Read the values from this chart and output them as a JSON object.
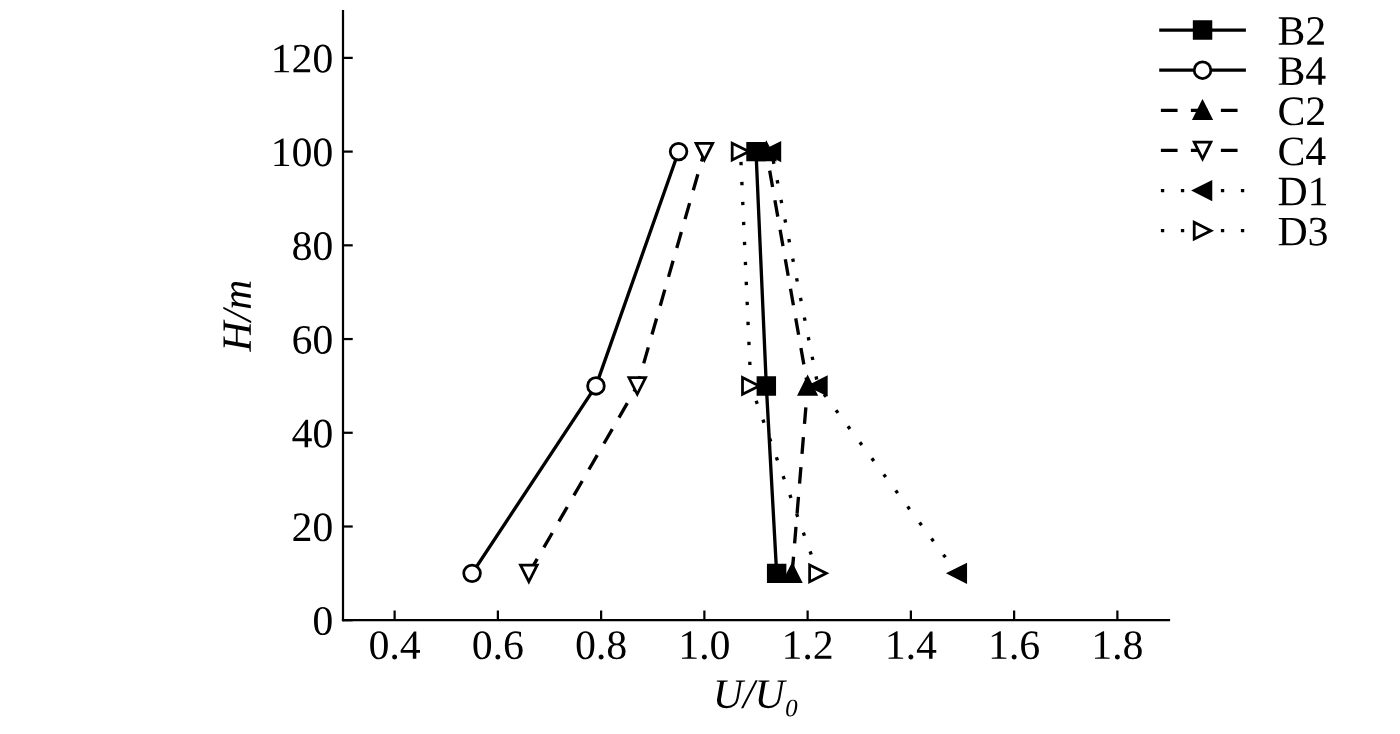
{
  "chart_data": {
    "type": "line",
    "xlabel": "U/U₀",
    "ylabel": "H/m",
    "xlim": [
      0.3,
      1.9
    ],
    "xticks": [
      0.4,
      0.6,
      0.8,
      {
        "value": 1.0,
        "label": "1.0"
      },
      1.2,
      1.4,
      1.6,
      1.8
    ],
    "ylim": [
      0,
      130
    ],
    "yticks": [
      0,
      20,
      40,
      60,
      80,
      100,
      120
    ],
    "legend": "top right",
    "grid": false,
    "series": [
      {
        "name": "B2",
        "color": "#000000",
        "marker": "square",
        "line_style": "solid",
        "x": [
          1.14,
          1.12,
          1.1
        ],
        "values": [
          10,
          50,
          100
        ]
      },
      {
        "name": "B4",
        "color": "#000000",
        "marker": "circle",
        "line_style": "solid",
        "x": [
          0.55,
          0.79,
          0.95
        ],
        "values": [
          10,
          50,
          100
        ]
      },
      {
        "name": "C2",
        "color": "#000000",
        "marker": "triangle",
        "line_style": "dashed",
        "x": [
          1.17,
          1.2,
          1.12
        ],
        "values": [
          10,
          50,
          100
        ]
      },
      {
        "name": "C4",
        "color": "#000000",
        "marker": "triangle_down",
        "line_style": "dashed",
        "x": [
          0.66,
          0.87,
          1.0
        ],
        "values": [
          10,
          50,
          100
        ]
      },
      {
        "name": "D1",
        "color": "#000000",
        "marker": "triangle_left",
        "line_style": "dotted",
        "x": [
          1.49,
          1.22,
          1.13
        ],
        "values": [
          10,
          50,
          100
        ]
      },
      {
        "name": "D3",
        "color": "#000000",
        "marker": "triangle_right",
        "line_style": "dotted",
        "x": [
          1.22,
          1.09,
          1.07
        ],
        "values": [
          10,
          50,
          100
        ]
      }
    ]
  }
}
